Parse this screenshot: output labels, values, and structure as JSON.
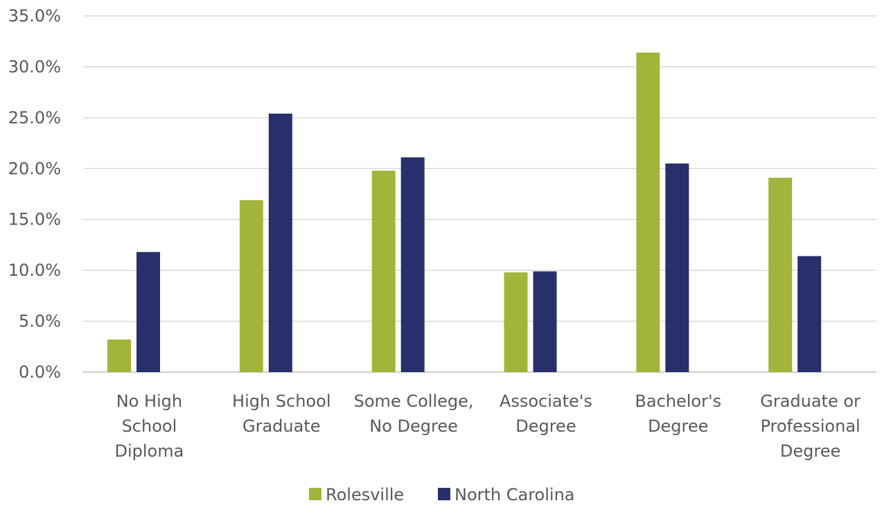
{
  "chart_data": {
    "type": "bar",
    "title": "",
    "xlabel": "",
    "ylabel": "",
    "categories": [
      [
        "No High",
        "School",
        "Diploma"
      ],
      [
        "High School",
        "Graduate"
      ],
      [
        "Some College,",
        "No Degree"
      ],
      [
        "Associate's",
        "Degree"
      ],
      [
        "Bachelor's",
        "Degree"
      ],
      [
        "Graduate or",
        "Professional",
        "Degree"
      ]
    ],
    "series": [
      {
        "name": "Rolesville",
        "color": "#A3B43A",
        "values": [
          3.2,
          16.9,
          19.8,
          9.8,
          31.4,
          19.1
        ]
      },
      {
        "name": "North Carolina",
        "color": "#27306B",
        "values": [
          11.8,
          25.4,
          21.1,
          9.9,
          20.5,
          11.4
        ]
      }
    ],
    "ylim": [
      0,
      35
    ],
    "ytick_labels": [
      "0.0%",
      "5.0%",
      "10.0%",
      "15.0%",
      "20.0%",
      "25.0%",
      "30.0%",
      "35.0%"
    ],
    "grid": true,
    "legend_position": "bottom"
  }
}
